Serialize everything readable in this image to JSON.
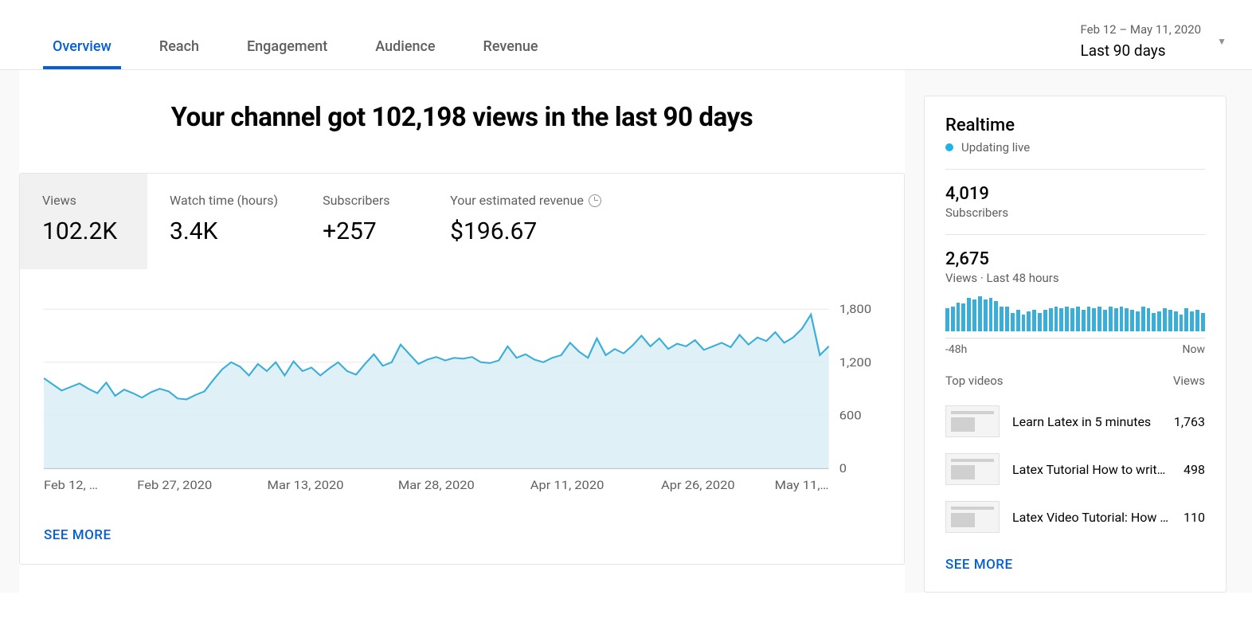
{
  "tabs": [
    {
      "label": "Overview",
      "active": true
    },
    {
      "label": "Reach",
      "active": false
    },
    {
      "label": "Engagement",
      "active": false
    },
    {
      "label": "Audience",
      "active": false
    },
    {
      "label": "Revenue",
      "active": false
    }
  ],
  "date_picker": {
    "range": "Feb 12 – May 11, 2020",
    "label": "Last 90 days"
  },
  "headline": "Your channel got 102,198 views in the last 90 days",
  "metrics": [
    {
      "label": "Views",
      "value": "102.2K",
      "selected": true
    },
    {
      "label": "Watch time (hours)",
      "value": "3.4K",
      "selected": false
    },
    {
      "label": "Subscribers",
      "value": "+257",
      "selected": false
    },
    {
      "label": "Your estimated revenue",
      "value": "$196.67",
      "selected": false,
      "has_clock": true
    }
  ],
  "chart": {
    "type": "area",
    "line_color": "#39aed9",
    "fill_color": "#d9edf5",
    "grid_color": "#e8e8e8",
    "axis_color": "#909090",
    "x_labels": [
      "Feb 12, …",
      "Feb 27, 2020",
      "Mar 13, 2020",
      "Mar 28, 2020",
      "Apr 11, 2020",
      "Apr 26, 2020",
      "May 11,…"
    ],
    "y_ticks": [
      0,
      600,
      1200,
      1800
    ],
    "ylim": [
      0,
      2000
    ],
    "values": [
      1020,
      950,
      880,
      920,
      960,
      900,
      850,
      970,
      820,
      890,
      850,
      800,
      860,
      900,
      870,
      790,
      780,
      830,
      870,
      1000,
      1120,
      1200,
      1150,
      1050,
      1180,
      1100,
      1200,
      1050,
      1210,
      1100,
      1140,
      1050,
      1130,
      1200,
      1100,
      1060,
      1180,
      1290,
      1160,
      1200,
      1400,
      1290,
      1180,
      1230,
      1260,
      1220,
      1250,
      1240,
      1260,
      1200,
      1190,
      1220,
      1380,
      1250,
      1290,
      1230,
      1200,
      1250,
      1280,
      1420,
      1320,
      1250,
      1470,
      1280,
      1350,
      1300,
      1390,
      1500,
      1380,
      1470,
      1350,
      1410,
      1380,
      1450,
      1340,
      1380,
      1420,
      1370,
      1510,
      1400,
      1480,
      1440,
      1540,
      1420,
      1480,
      1580,
      1740,
      1280,
      1380
    ]
  },
  "see_more": "SEE MORE",
  "realtime": {
    "title": "Realtime",
    "live_label": "Updating live",
    "subscribers": {
      "value": "4,019",
      "label": "Subscribers"
    },
    "views48": {
      "value": "2,675",
      "label": "Views · Last 48 hours"
    },
    "bars": [
      28,
      30,
      34,
      33,
      40,
      38,
      42,
      38,
      40,
      36,
      30,
      30,
      22,
      26,
      20,
      24,
      26,
      22,
      26,
      28,
      30,
      28,
      30,
      28,
      30,
      26,
      30,
      28,
      30,
      26,
      30,
      28,
      30,
      28,
      26,
      24,
      30,
      28,
      22,
      24,
      28,
      26,
      24,
      20,
      28,
      24,
      26,
      22
    ],
    "bar_color": "#39aed9",
    "axis_left": "-48h",
    "axis_right": "Now",
    "top_videos_label": "Top videos",
    "views_label": "Views",
    "videos": [
      {
        "title": "Learn Latex in 5 minutes",
        "views": "1,763"
      },
      {
        "title": "Latex Tutorial How to write…",
        "views": "498"
      },
      {
        "title": "Latex Video Tutorial: How t…",
        "views": "110"
      }
    ],
    "see_more": "SEE MORE"
  }
}
